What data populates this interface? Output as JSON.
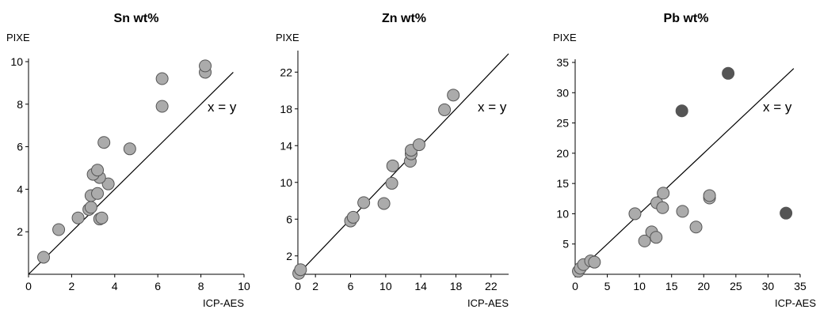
{
  "colors": {
    "point_fill": "#ababab",
    "outlier_fill": "#555555",
    "point_stroke": "#555555",
    "axis": "#000000"
  },
  "chart_data": [
    {
      "type": "scatter",
      "title": "Sn wt%",
      "xlabel": "ICP-AES",
      "ylabel": "PIXE",
      "xlim": [
        0,
        10
      ],
      "ylim": [
        0,
        10
      ],
      "xticks": [
        0,
        2,
        4,
        6,
        8,
        10
      ],
      "yticks": [
        2,
        4,
        6,
        8,
        10
      ],
      "reference_line": {
        "label": "x = y"
      },
      "points": [
        {
          "x": 0.7,
          "y": 0.8
        },
        {
          "x": 1.4,
          "y": 2.1
        },
        {
          "x": 2.3,
          "y": 2.65
        },
        {
          "x": 2.8,
          "y": 3.05
        },
        {
          "x": 2.9,
          "y": 3.15
        },
        {
          "x": 2.9,
          "y": 3.7
        },
        {
          "x": 3.3,
          "y": 2.6
        },
        {
          "x": 3.4,
          "y": 2.65
        },
        {
          "x": 3.2,
          "y": 3.8
        },
        {
          "x": 3.7,
          "y": 4.25
        },
        {
          "x": 3.3,
          "y": 4.55
        },
        {
          "x": 3.0,
          "y": 4.7
        },
        {
          "x": 3.2,
          "y": 4.9
        },
        {
          "x": 3.5,
          "y": 6.2
        },
        {
          "x": 4.7,
          "y": 5.9
        },
        {
          "x": 6.2,
          "y": 7.9
        },
        {
          "x": 6.2,
          "y": 9.2
        },
        {
          "x": 8.2,
          "y": 9.5
        },
        {
          "x": 8.2,
          "y": 9.8
        }
      ]
    },
    {
      "type": "scatter",
      "title": "Zn wt%",
      "xlabel": "ICP-AES",
      "ylabel": "PIXE",
      "xlim": [
        0,
        24
      ],
      "ylim": [
        0,
        24
      ],
      "xticks": [
        0,
        2,
        6,
        10,
        14,
        18,
        22
      ],
      "yticks": [
        2,
        6,
        10,
        14,
        18,
        22
      ],
      "reference_line": {
        "label": "x = y"
      },
      "points": [
        {
          "x": 0.1,
          "y": 0.1
        },
        {
          "x": 0.3,
          "y": 0.5
        },
        {
          "x": 6.0,
          "y": 5.8
        },
        {
          "x": 6.3,
          "y": 6.2
        },
        {
          "x": 7.5,
          "y": 7.8
        },
        {
          "x": 9.8,
          "y": 7.7
        },
        {
          "x": 10.7,
          "y": 9.9
        },
        {
          "x": 10.8,
          "y": 11.8
        },
        {
          "x": 12.8,
          "y": 12.3
        },
        {
          "x": 12.9,
          "y": 13.1
        },
        {
          "x": 12.9,
          "y": 13.5
        },
        {
          "x": 13.8,
          "y": 14.1
        },
        {
          "x": 16.7,
          "y": 17.9
        },
        {
          "x": 17.7,
          "y": 19.5
        }
      ]
    },
    {
      "type": "scatter",
      "title": "Pb wt%",
      "xlabel": "ICP-AES",
      "ylabel": "PIXE",
      "xlim": [
        0,
        35
      ],
      "ylim": [
        0,
        35
      ],
      "xticks": [
        0,
        5,
        10,
        15,
        20,
        25,
        30,
        35
      ],
      "yticks": [
        5,
        10,
        15,
        20,
        25,
        30,
        35
      ],
      "reference_line": {
        "label": "x = y"
      },
      "points": [
        {
          "x": 0.5,
          "y": 0.5
        },
        {
          "x": 0.8,
          "y": 1.0
        },
        {
          "x": 1.3,
          "y": 1.6
        },
        {
          "x": 2.4,
          "y": 2.2
        },
        {
          "x": 3.0,
          "y": 2.0
        },
        {
          "x": 9.3,
          "y": 10.0
        },
        {
          "x": 10.8,
          "y": 5.5
        },
        {
          "x": 11.9,
          "y": 7.0
        },
        {
          "x": 12.6,
          "y": 6.1
        },
        {
          "x": 12.7,
          "y": 11.8
        },
        {
          "x": 13.6,
          "y": 11.0
        },
        {
          "x": 13.7,
          "y": 13.4
        },
        {
          "x": 16.7,
          "y": 10.4
        },
        {
          "x": 18.8,
          "y": 7.8
        },
        {
          "x": 20.9,
          "y": 12.6
        },
        {
          "x": 20.9,
          "y": 13.0
        },
        {
          "x": 16.6,
          "y": 27.0,
          "outlier": true
        },
        {
          "x": 23.8,
          "y": 33.2,
          "outlier": true
        },
        {
          "x": 32.8,
          "y": 10.1,
          "outlier": true
        }
      ]
    }
  ]
}
